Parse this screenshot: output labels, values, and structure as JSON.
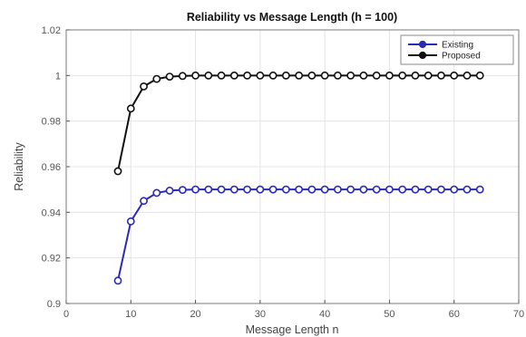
{
  "chart_data": {
    "type": "line",
    "title": "Reliability vs Message Length (h = 100)",
    "xlabel": "Message Length n",
    "ylabel": "Reliability",
    "xlim": [
      0,
      70
    ],
    "ylim": [
      0.9,
      1.02
    ],
    "xticks": [
      0,
      10,
      20,
      30,
      40,
      50,
      60,
      70
    ],
    "yticks": [
      0.9,
      0.92,
      0.94,
      0.96,
      0.98,
      1,
      1.02
    ],
    "xtick_labels": [
      "0",
      "10",
      "20",
      "30",
      "40",
      "50",
      "60",
      "70"
    ],
    "ytick_labels": [
      "0.9",
      "0.92",
      "0.94",
      "0.96",
      "0.98",
      "1",
      "1.02"
    ],
    "grid": true,
    "legend_position": "top-right",
    "x": [
      8,
      10,
      12,
      14,
      16,
      18,
      20,
      22,
      24,
      26,
      28,
      30,
      32,
      34,
      36,
      38,
      40,
      42,
      44,
      46,
      48,
      50,
      52,
      54,
      56,
      58,
      60,
      62,
      64
    ],
    "series": [
      {
        "name": "Existing",
        "color": "#2a2ab8",
        "values": [
          0.91,
          0.936,
          0.945,
          0.9485,
          0.9495,
          0.9498,
          0.95,
          0.95,
          0.95,
          0.95,
          0.95,
          0.95,
          0.95,
          0.95,
          0.95,
          0.95,
          0.95,
          0.95,
          0.95,
          0.95,
          0.95,
          0.95,
          0.95,
          0.95,
          0.95,
          0.95,
          0.95,
          0.95,
          0.95
        ]
      },
      {
        "name": "Proposed",
        "color": "#111111",
        "values": [
          0.958,
          0.9855,
          0.9952,
          0.9985,
          0.9995,
          0.9998,
          1,
          1,
          1,
          1,
          1,
          1,
          1,
          1,
          1,
          1,
          1,
          1,
          1,
          1,
          1,
          1,
          1,
          1,
          1,
          1,
          1,
          1,
          1
        ]
      }
    ]
  }
}
